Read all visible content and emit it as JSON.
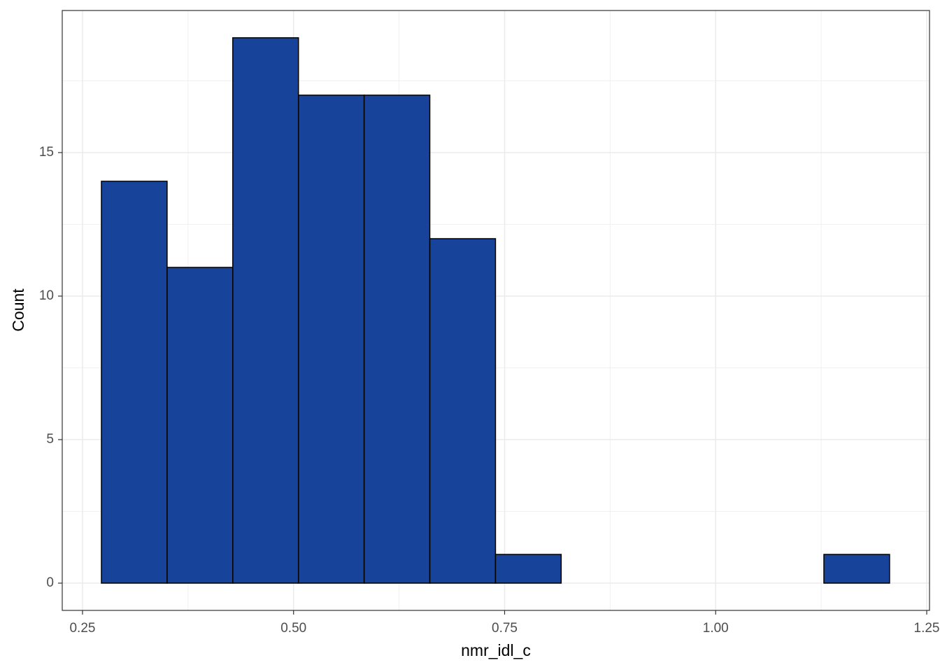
{
  "chart_data": {
    "type": "histogram",
    "x_label": "nmr_idl_c",
    "y_label": "Count",
    "bins": [
      0.2724,
      0.3502,
      0.428,
      0.5058,
      0.5836,
      0.6614,
      0.7392,
      0.817,
      0.8948,
      0.9726,
      1.0504,
      1.1282,
      1.206
    ],
    "values": [
      14,
      11,
      19,
      17,
      17,
      12,
      1,
      0,
      0,
      0,
      0,
      1
    ],
    "color": "#17439b",
    "edge_color": "#000000",
    "xlim": [
      0.226,
      1.2533
    ],
    "xticks": [
      {
        "value": 0.25,
        "label": "0.25"
      },
      {
        "value": 0.5,
        "label": "0.50"
      },
      {
        "value": 0.75,
        "label": "0.75"
      },
      {
        "value": 1.0,
        "label": "1.00"
      },
      {
        "value": 1.25,
        "label": "1.25"
      }
    ],
    "x_minor_grid": [
      0.375,
      0.625,
      0.875,
      1.125
    ],
    "ylim": [
      -0.95,
      19.95
    ],
    "yticks": [
      0,
      5,
      10,
      15
    ],
    "y_minor_grid": [
      2.5,
      7.5,
      12.5,
      17.5
    ],
    "grid": true
  }
}
